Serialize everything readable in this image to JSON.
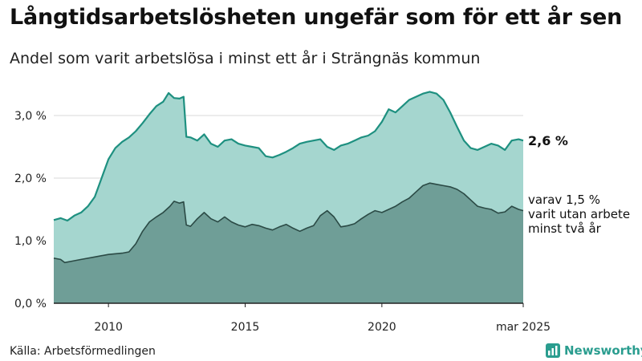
{
  "title": "Långtidsarbetslösheten ungefär som för ett år sen",
  "subtitle": "Andel som varit arbetslösa i minst ett år i Strängnäs kommun",
  "source": "Källa: Arbetsförmedlingen",
  "brand": {
    "name": "Newsworthy",
    "icon": "newsworthy-logo-icon"
  },
  "colors": {
    "total_fill": "#a5d6cf",
    "total_line": "#1e9080",
    "sub_fill": "#6f9e97",
    "sub_line": "#2b4a45",
    "grid": "#d9d9d9",
    "axis": "#222222",
    "brand": "#2a9d8f"
  },
  "chart_data": {
    "type": "area",
    "x_start": "2008-01",
    "x_end": "2025-03",
    "ylim": [
      0,
      3.5
    ],
    "y_ticks": [
      0,
      1,
      2,
      3
    ],
    "y_tick_labels": [
      "0,0 %",
      "1,0 %",
      "2,0 %",
      "3,0 %"
    ],
    "x_tick_labels": [
      {
        "year": 2010,
        "label": "2010"
      },
      {
        "year": 2015,
        "label": "2015"
      },
      {
        "year": 2020,
        "label": "2020"
      },
      {
        "year": 2025.17,
        "label": "mar 2025"
      }
    ],
    "grid": true,
    "series": [
      {
        "key": "total",
        "end_label": "2,6 %",
        "points": [
          [
            2008.0,
            1.33
          ],
          [
            2008.25,
            1.36
          ],
          [
            2008.5,
            1.32
          ],
          [
            2008.75,
            1.4
          ],
          [
            2009.0,
            1.45
          ],
          [
            2009.25,
            1.55
          ],
          [
            2009.5,
            1.7
          ],
          [
            2009.75,
            2.0
          ],
          [
            2010.0,
            2.3
          ],
          [
            2010.25,
            2.48
          ],
          [
            2010.5,
            2.58
          ],
          [
            2010.75,
            2.65
          ],
          [
            2011.0,
            2.75
          ],
          [
            2011.25,
            2.88
          ],
          [
            2011.5,
            3.02
          ],
          [
            2011.75,
            3.15
          ],
          [
            2012.0,
            3.22
          ],
          [
            2012.2,
            3.36
          ],
          [
            2012.4,
            3.28
          ],
          [
            2012.6,
            3.27
          ],
          [
            2012.75,
            3.3
          ],
          [
            2012.85,
            2.66
          ],
          [
            2013.0,
            2.65
          ],
          [
            2013.25,
            2.6
          ],
          [
            2013.5,
            2.7
          ],
          [
            2013.75,
            2.55
          ],
          [
            2014.0,
            2.5
          ],
          [
            2014.25,
            2.6
          ],
          [
            2014.5,
            2.62
          ],
          [
            2014.75,
            2.55
          ],
          [
            2015.0,
            2.52
          ],
          [
            2015.25,
            2.5
          ],
          [
            2015.5,
            2.48
          ],
          [
            2015.75,
            2.35
          ],
          [
            2016.0,
            2.33
          ],
          [
            2016.25,
            2.37
          ],
          [
            2016.5,
            2.42
          ],
          [
            2016.75,
            2.48
          ],
          [
            2017.0,
            2.55
          ],
          [
            2017.25,
            2.58
          ],
          [
            2017.5,
            2.6
          ],
          [
            2017.75,
            2.62
          ],
          [
            2018.0,
            2.5
          ],
          [
            2018.25,
            2.45
          ],
          [
            2018.5,
            2.52
          ],
          [
            2018.75,
            2.55
          ],
          [
            2019.0,
            2.6
          ],
          [
            2019.25,
            2.65
          ],
          [
            2019.5,
            2.68
          ],
          [
            2019.75,
            2.75
          ],
          [
            2020.0,
            2.9
          ],
          [
            2020.25,
            3.1
          ],
          [
            2020.5,
            3.05
          ],
          [
            2020.75,
            3.15
          ],
          [
            2021.0,
            3.25
          ],
          [
            2021.25,
            3.3
          ],
          [
            2021.5,
            3.35
          ],
          [
            2021.75,
            3.38
          ],
          [
            2022.0,
            3.35
          ],
          [
            2022.25,
            3.25
          ],
          [
            2022.5,
            3.05
          ],
          [
            2022.75,
            2.82
          ],
          [
            2023.0,
            2.6
          ],
          [
            2023.25,
            2.48
          ],
          [
            2023.5,
            2.45
          ],
          [
            2023.75,
            2.5
          ],
          [
            2024.0,
            2.55
          ],
          [
            2024.25,
            2.52
          ],
          [
            2024.5,
            2.45
          ],
          [
            2024.75,
            2.6
          ],
          [
            2025.0,
            2.62
          ],
          [
            2025.17,
            2.6
          ]
        ]
      },
      {
        "key": "sub",
        "end_label_lines": [
          "varav 1,5 %",
          "varit utan arbete",
          "minst två år"
        ],
        "points": [
          [
            2008.0,
            0.72
          ],
          [
            2008.25,
            0.7
          ],
          [
            2008.4,
            0.65
          ],
          [
            2008.75,
            0.68
          ],
          [
            2009.0,
            0.7
          ],
          [
            2009.5,
            0.74
          ],
          [
            2010.0,
            0.78
          ],
          [
            2010.5,
            0.8
          ],
          [
            2010.75,
            0.82
          ],
          [
            2011.0,
            0.95
          ],
          [
            2011.25,
            1.15
          ],
          [
            2011.5,
            1.3
          ],
          [
            2011.75,
            1.38
          ],
          [
            2012.0,
            1.45
          ],
          [
            2012.25,
            1.55
          ],
          [
            2012.4,
            1.63
          ],
          [
            2012.6,
            1.6
          ],
          [
            2012.75,
            1.62
          ],
          [
            2012.85,
            1.25
          ],
          [
            2013.0,
            1.23
          ],
          [
            2013.25,
            1.35
          ],
          [
            2013.5,
            1.45
          ],
          [
            2013.75,
            1.35
          ],
          [
            2014.0,
            1.3
          ],
          [
            2014.25,
            1.38
          ],
          [
            2014.5,
            1.3
          ],
          [
            2014.75,
            1.25
          ],
          [
            2015.0,
            1.22
          ],
          [
            2015.25,
            1.26
          ],
          [
            2015.5,
            1.24
          ],
          [
            2015.75,
            1.2
          ],
          [
            2016.0,
            1.17
          ],
          [
            2016.25,
            1.22
          ],
          [
            2016.5,
            1.26
          ],
          [
            2016.75,
            1.2
          ],
          [
            2017.0,
            1.15
          ],
          [
            2017.25,
            1.2
          ],
          [
            2017.5,
            1.24
          ],
          [
            2017.75,
            1.4
          ],
          [
            2018.0,
            1.48
          ],
          [
            2018.25,
            1.38
          ],
          [
            2018.5,
            1.22
          ],
          [
            2018.75,
            1.24
          ],
          [
            2019.0,
            1.27
          ],
          [
            2019.25,
            1.35
          ],
          [
            2019.5,
            1.42
          ],
          [
            2019.75,
            1.48
          ],
          [
            2020.0,
            1.45
          ],
          [
            2020.25,
            1.5
          ],
          [
            2020.5,
            1.55
          ],
          [
            2020.75,
            1.62
          ],
          [
            2021.0,
            1.68
          ],
          [
            2021.25,
            1.78
          ],
          [
            2021.5,
            1.88
          ],
          [
            2021.75,
            1.92
          ],
          [
            2022.0,
            1.9
          ],
          [
            2022.25,
            1.88
          ],
          [
            2022.5,
            1.86
          ],
          [
            2022.75,
            1.82
          ],
          [
            2023.0,
            1.75
          ],
          [
            2023.25,
            1.65
          ],
          [
            2023.5,
            1.55
          ],
          [
            2023.75,
            1.52
          ],
          [
            2024.0,
            1.5
          ],
          [
            2024.25,
            1.44
          ],
          [
            2024.5,
            1.46
          ],
          [
            2024.75,
            1.55
          ],
          [
            2025.0,
            1.5
          ],
          [
            2025.17,
            1.48
          ]
        ]
      }
    ]
  }
}
